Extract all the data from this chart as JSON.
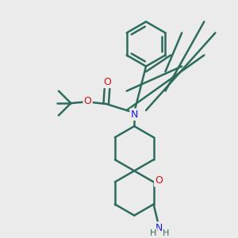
{
  "background_color": "#ebebeb",
  "bond_color": "#2d6b5e",
  "bond_width": 1.8,
  "atom_colors": {
    "N": "#1a1aee",
    "O": "#cc1111",
    "H": "#2d6b5e",
    "C": "#2d6b5e"
  },
  "figsize": [
    3.0,
    3.0
  ],
  "dpi": 100
}
